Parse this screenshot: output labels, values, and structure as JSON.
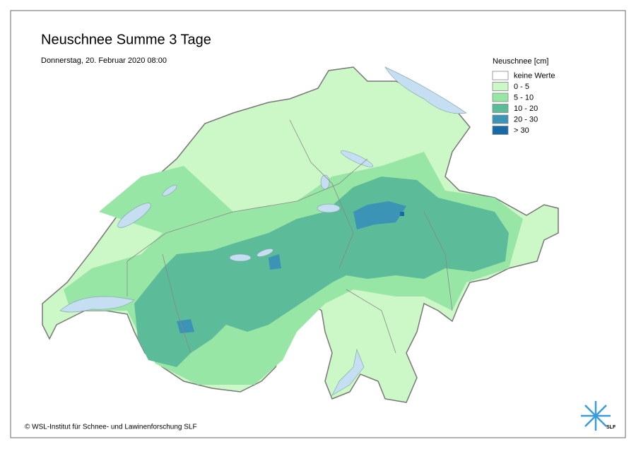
{
  "header": {
    "title": "Neuschnee Summe 3 Tage",
    "subtitle": "Donnerstag, 20. Februar 2020 08:00"
  },
  "legend": {
    "title": "Neuschnee [cm]",
    "items": [
      {
        "label": "keine Werte",
        "color": "#ffffff"
      },
      {
        "label": "0 - 5",
        "color": "#ccf7c6"
      },
      {
        "label": "5 - 10",
        "color": "#98e6a6"
      },
      {
        "label": "10 - 20",
        "color": "#5cbb98"
      },
      {
        "label": "20 - 30",
        "color": "#3b93b6"
      },
      {
        "label": "> 30",
        "color": "#176aa6"
      }
    ]
  },
  "footer": {
    "copyright": "© WSL-Institut für Schnee- und Lawinenforschung SLF",
    "logo": "SLF"
  }
}
